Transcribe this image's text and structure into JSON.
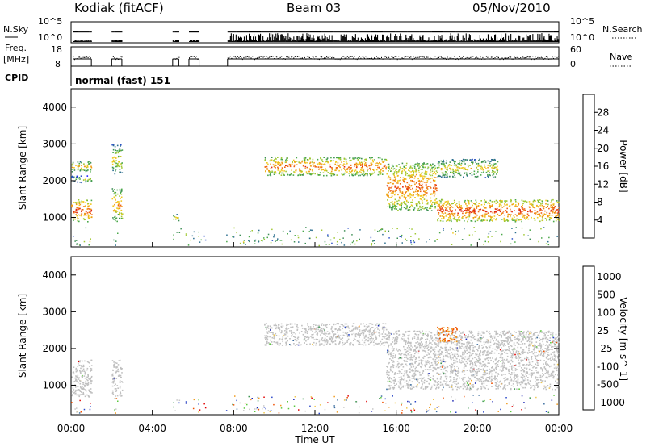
{
  "header": {
    "station": "Kodiak (fitACF)",
    "beam": "Beam 03",
    "date": "05/Nov/2010"
  },
  "summary_panels": {
    "nsky_label": "N.Sky",
    "nsky_ticks": [
      "10^5",
      "10^0"
    ],
    "nsearch_label": "N.Search",
    "nsearch_ticks": [
      "10^5",
      "10^0"
    ],
    "freq_label": "Freq.",
    "freq_unit": "[MHz]",
    "freq_ticks": [
      "18",
      "8"
    ],
    "nave_label": "Nave",
    "nave_ticks": [
      "60",
      "0"
    ],
    "cpid_label": "CPID",
    "cpid_value": "normal (fast) 151"
  },
  "colors": {
    "power_scale": [
      "#1a1aff",
      "#2a4fc8",
      "#2c6f8f",
      "#3e8f55",
      "#4aa84a",
      "#a0c832",
      "#f0c81e",
      "#f09b14",
      "#f06414",
      "#e02814",
      "#d00000"
    ],
    "velocity_scale": [
      "#e00000",
      "#f05000",
      "#f09a1e",
      "#f0c850",
      "#c8c8c8",
      "#c8c8c8",
      "#5ac83c",
      "#3c9650",
      "#3c6ea0",
      "#2846c8",
      "#1e28b4"
    ],
    "ground_scatter": "#c0c0c0"
  },
  "chart_data": [
    {
      "type": "heatmap",
      "name_label": "Power [dB]",
      "ylabel": "Slant Range [km]",
      "xlabel": "",
      "xlim": [
        0,
        24
      ],
      "ylim": [
        200,
        4500
      ],
      "y_ticks": [
        "1000",
        "2000",
        "3000",
        "4000"
      ],
      "colorbar_ticks": [
        "4",
        "8",
        "12",
        "16",
        "20",
        "24",
        "28"
      ],
      "colorbar_range": [
        0,
        32
      ],
      "features": [
        {
          "x": [
            0.0,
            1.0
          ],
          "y": [
            900,
            1500
          ],
          "level": 28
        },
        {
          "x": [
            0.0,
            1.0
          ],
          "y": [
            1950,
            2150
          ],
          "level": 16
        },
        {
          "x": [
            0.0,
            1.0
          ],
          "y": [
            2250,
            2550
          ],
          "level": 22
        },
        {
          "x": [
            2.0,
            2.5
          ],
          "y": [
            900,
            1800
          ],
          "level": 24
        },
        {
          "x": [
            2.0,
            2.5
          ],
          "y": [
            2200,
            3000
          ],
          "level": 20
        },
        {
          "x": [
            5.0,
            5.3
          ],
          "y": [
            900,
            1100
          ],
          "level": 20
        },
        {
          "x": [
            9.5,
            15.5
          ],
          "y": [
            2150,
            2650
          ],
          "level": 26
        },
        {
          "x": [
            15.5,
            18.0
          ],
          "y": [
            1200,
            2500
          ],
          "level": 26
        },
        {
          "x": [
            18.0,
            24.0
          ],
          "y": [
            900,
            1500
          ],
          "level": 28
        },
        {
          "x": [
            18.0,
            21.0
          ],
          "y": [
            2100,
            2600
          ],
          "level": 20
        }
      ]
    },
    {
      "type": "heatmap",
      "name_label": "Velocity [m s^-1]",
      "ylabel": "Slant Range [km]",
      "xlabel": "Time UT",
      "xlim": [
        0,
        24
      ],
      "ylim": [
        200,
        4500
      ],
      "y_ticks": [
        "1000",
        "2000",
        "3000",
        "4000"
      ],
      "x_ticks": [
        "00:00",
        "04:00",
        "08:00",
        "12:00",
        "16:00",
        "20:00",
        "00:00"
      ],
      "colorbar_ticks": [
        "1000",
        "500",
        "100",
        "25",
        "-25",
        "-100",
        "-500",
        "-1000"
      ],
      "features": [
        {
          "x": [
            0.0,
            1.0
          ],
          "y": [
            700,
            1700
          ],
          "level": 0
        },
        {
          "x": [
            2.0,
            2.5
          ],
          "y": [
            700,
            1700
          ],
          "level": 0
        },
        {
          "x": [
            9.5,
            15.5
          ],
          "y": [
            2100,
            2700
          ],
          "level": 0
        },
        {
          "x": [
            15.5,
            24.0
          ],
          "y": [
            900,
            2500
          ],
          "level": 0
        },
        {
          "x": [
            18.0,
            19.0
          ],
          "y": [
            2200,
            2600
          ],
          "level": -300
        }
      ]
    }
  ]
}
